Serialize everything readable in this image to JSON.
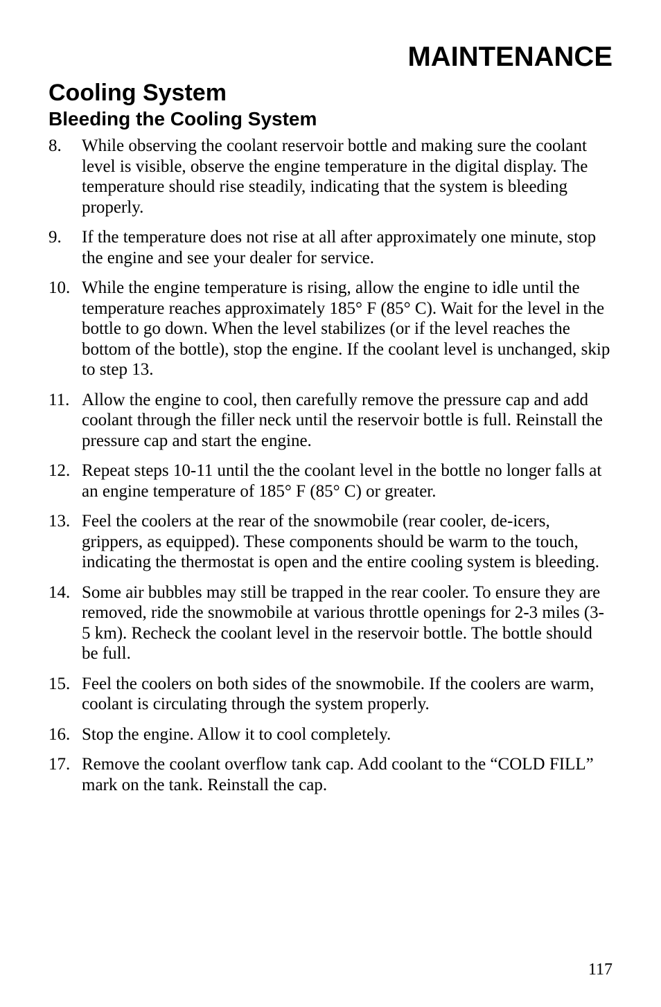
{
  "mainHeading": "MAINTENANCE",
  "sectionHeading": "Cooling System",
  "subsectionHeading": "Bleeding the Cooling System",
  "items": [
    {
      "num": "8.",
      "text": "While observing the coolant reservoir bottle and making sure the coolant level is visible, observe the engine temperature in the digital display. The temperature should rise steadily, indicating that the system is bleeding properly."
    },
    {
      "num": "9.",
      "text": "If the temperature does not rise at all after approximately one minute, stop the engine and see your dealer for service."
    },
    {
      "num": "10.",
      "text": "While the engine temperature is rising, allow the engine to idle until the temperature reaches approximately 185° F (85° C). Wait for the level in the bottle to go down. When the level stabilizes (or if the level reaches the bottom of the bottle), stop the engine. If the coolant level is unchanged, skip to step 13."
    },
    {
      "num": "11.",
      "text": "Allow the engine to cool, then carefully remove the pressure cap and add coolant through the filler neck until the reservoir bottle is full. Reinstall the pressure cap and start the engine."
    },
    {
      "num": "12.",
      "text": "Repeat steps 10-11 until the the coolant level in the bottle no longer falls at an engine temperature of 185° F (85° C) or greater."
    },
    {
      "num": "13.",
      "text": "Feel the coolers at the rear of the snowmobile (rear cooler, de-icers, grippers, as equipped). These components should be warm to the touch, indicating the thermostat is open and the entire cooling system is bleeding."
    },
    {
      "num": "14.",
      "text": "Some air bubbles may still be trapped in the rear cooler. To ensure they are removed, ride the snowmobile at various throttle openings for 2-3 miles (3-5 km). Recheck the coolant level in the reservoir bottle. The bottle should be full."
    },
    {
      "num": "15.",
      "text": "Feel the coolers on both sides of the snowmobile. If the coolers are warm, coolant is circulating through the system properly."
    },
    {
      "num": "16.",
      "text": "Stop the engine. Allow it to cool completely."
    },
    {
      "num": "17.",
      "text": "Remove the coolant overflow tank cap. Add coolant to the “COLD FILL” mark on the tank. Reinstall the cap."
    }
  ],
  "pageNumber": "117"
}
